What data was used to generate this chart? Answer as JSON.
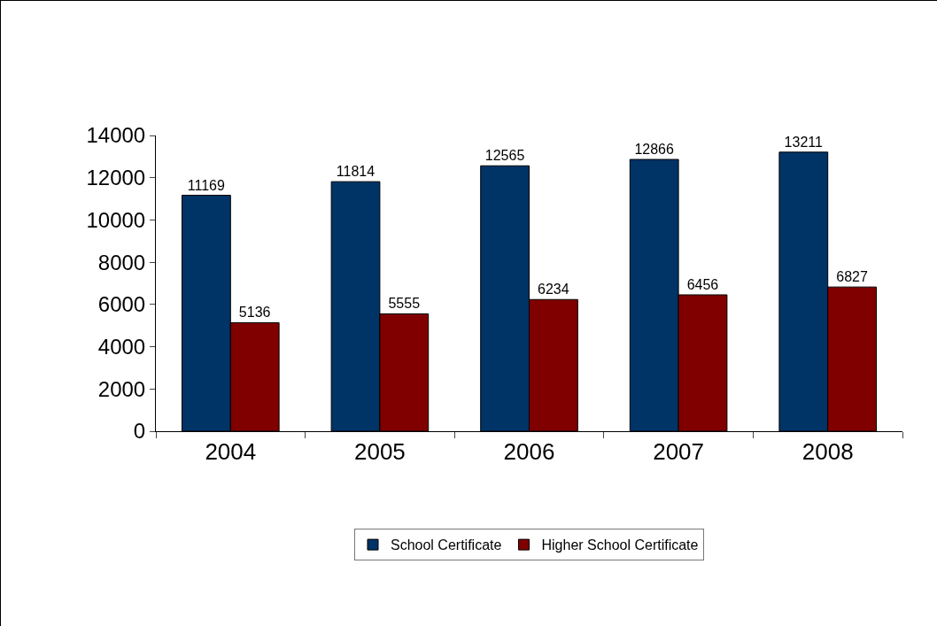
{
  "chart_data": {
    "type": "bar",
    "categories": [
      "2004",
      "2005",
      "2006",
      "2007",
      "2008"
    ],
    "series": [
      {
        "name": "School Certificate",
        "color": "#003366",
        "values": [
          11169,
          11814,
          12565,
          12866,
          13211
        ]
      },
      {
        "name": "Higher School Certificate",
        "color": "#800000",
        "values": [
          5136,
          5555,
          6234,
          6456,
          6827
        ]
      }
    ],
    "ylim": [
      0,
      14000
    ],
    "yticks": [
      0,
      2000,
      4000,
      6000,
      8000,
      10000,
      12000,
      14000
    ],
    "grid": false,
    "legend": "bottom",
    "data_labels": true
  }
}
